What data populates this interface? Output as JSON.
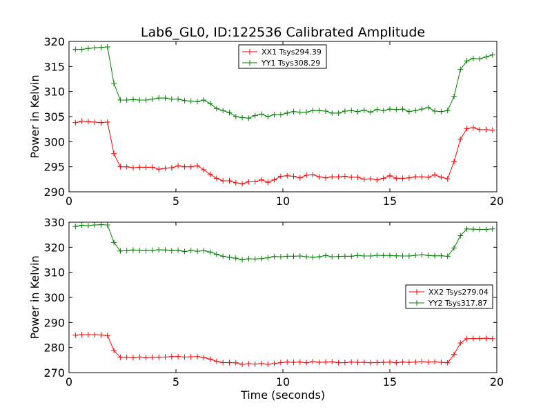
{
  "title": "Lab6_GL0, ID:122536 Calibrated Amplitude",
  "xlabel": "Time (seconds)",
  "colors": {
    "xx": "#ff0000",
    "yy": "#008000"
  },
  "chart_data": [
    {
      "type": "line",
      "ylabel": "Power in Kelvin",
      "xlim": [
        0,
        20
      ],
      "ylim": [
        290,
        320
      ],
      "xticks": [
        0,
        5,
        10,
        15,
        20
      ],
      "yticks": [
        290,
        295,
        300,
        305,
        310,
        315,
        320
      ],
      "legend": "top-center",
      "grid": false,
      "series": [
        {
          "name": "XX1 Tsys294.39",
          "color": "#ff0000",
          "x": [
            0.3,
            0.6,
            0.9,
            1.2,
            1.5,
            1.8,
            2.1,
            2.4,
            2.7,
            3.0,
            3.3,
            3.6,
            3.9,
            4.2,
            4.5,
            4.8,
            5.1,
            5.4,
            5.7,
            6.0,
            6.3,
            6.6,
            6.9,
            7.2,
            7.5,
            7.8,
            8.1,
            8.4,
            8.7,
            9.0,
            9.3,
            9.6,
            9.9,
            10.2,
            10.5,
            10.8,
            11.1,
            11.4,
            11.7,
            12.0,
            12.3,
            12.6,
            12.9,
            13.2,
            13.5,
            13.8,
            14.1,
            14.4,
            14.7,
            15.0,
            15.3,
            15.6,
            15.9,
            16.2,
            16.5,
            16.8,
            17.1,
            17.4,
            17.7,
            18.0,
            18.3,
            18.6,
            18.9,
            19.2,
            19.5,
            19.8
          ],
          "y": [
            303.8,
            304.1,
            304.0,
            303.9,
            303.8,
            303.9,
            297.6,
            295.0,
            295.0,
            294.8,
            294.9,
            294.9,
            294.9,
            294.5,
            294.7,
            294.8,
            295.2,
            295.0,
            295.0,
            295.2,
            294.4,
            293.5,
            292.7,
            292.2,
            292.2,
            291.8,
            291.6,
            292.0,
            292.0,
            292.4,
            291.9,
            292.4,
            293.1,
            293.2,
            293.1,
            292.8,
            293.3,
            293.4,
            293.0,
            292.8,
            293.0,
            293.0,
            293.1,
            292.9,
            292.9,
            292.5,
            292.6,
            292.4,
            292.7,
            293.2,
            292.7,
            292.7,
            292.8,
            293.0,
            293.0,
            292.9,
            293.4,
            292.9,
            292.6,
            296.0,
            300.5,
            302.6,
            302.8,
            302.4,
            302.4,
            302.3
          ]
        },
        {
          "name": "YY1 Tsys308.29",
          "color": "#008000",
          "x": [
            0.3,
            0.6,
            0.9,
            1.2,
            1.5,
            1.8,
            2.1,
            2.4,
            2.7,
            3.0,
            3.3,
            3.6,
            3.9,
            4.2,
            4.5,
            4.8,
            5.1,
            5.4,
            5.7,
            6.0,
            6.3,
            6.6,
            6.9,
            7.2,
            7.5,
            7.8,
            8.1,
            8.4,
            8.7,
            9.0,
            9.3,
            9.6,
            9.9,
            10.2,
            10.5,
            10.8,
            11.1,
            11.4,
            11.7,
            12.0,
            12.3,
            12.6,
            12.9,
            13.2,
            13.5,
            13.8,
            14.1,
            14.4,
            14.7,
            15.0,
            15.3,
            15.6,
            15.9,
            16.2,
            16.5,
            16.8,
            17.1,
            17.4,
            17.7,
            18.0,
            18.3,
            18.6,
            18.9,
            19.2,
            19.5,
            19.8
          ],
          "y": [
            318.4,
            318.4,
            318.6,
            318.7,
            318.8,
            318.9,
            311.6,
            308.3,
            308.3,
            308.4,
            308.3,
            308.3,
            308.5,
            308.7,
            308.7,
            308.5,
            308.5,
            308.2,
            308.1,
            308.0,
            308.3,
            307.6,
            306.6,
            306.2,
            305.8,
            305.0,
            304.8,
            304.7,
            305.2,
            305.5,
            305.0,
            305.4,
            305.4,
            305.7,
            306.0,
            305.9,
            305.9,
            306.2,
            306.2,
            306.1,
            305.7,
            305.7,
            306.1,
            306.2,
            306.0,
            306.3,
            305.9,
            306.4,
            306.2,
            306.5,
            306.4,
            306.5,
            306.0,
            306.2,
            306.5,
            306.8,
            306.1,
            306.0,
            306.2,
            309.0,
            314.4,
            316.1,
            316.6,
            316.5,
            316.9,
            317.3
          ]
        }
      ]
    },
    {
      "type": "line",
      "ylabel": "Power in Kelvin",
      "xlabel": "Time (seconds)",
      "xlim": [
        0,
        20
      ],
      "ylim": [
        270,
        330
      ],
      "xticks": [
        0,
        5,
        10,
        15,
        20
      ],
      "yticks": [
        270,
        280,
        290,
        300,
        310,
        320,
        330
      ],
      "legend": "center-right",
      "grid": false,
      "series": [
        {
          "name": "XX2 Tsys279.04",
          "color": "#ff0000",
          "x": [
            0.3,
            0.6,
            0.9,
            1.2,
            1.5,
            1.8,
            2.1,
            2.4,
            2.7,
            3.0,
            3.3,
            3.6,
            3.9,
            4.2,
            4.5,
            4.8,
            5.1,
            5.4,
            5.7,
            6.0,
            6.3,
            6.6,
            6.9,
            7.2,
            7.5,
            7.8,
            8.1,
            8.4,
            8.7,
            9.0,
            9.3,
            9.6,
            9.9,
            10.2,
            10.5,
            10.8,
            11.1,
            11.4,
            11.7,
            12.0,
            12.3,
            12.6,
            12.9,
            13.2,
            13.5,
            13.8,
            14.1,
            14.4,
            14.7,
            15.0,
            15.3,
            15.6,
            15.9,
            16.2,
            16.5,
            16.8,
            17.1,
            17.4,
            17.7,
            18.0,
            18.3,
            18.6,
            18.9,
            19.2,
            19.5,
            19.8
          ],
          "y": [
            284.9,
            285.1,
            285.1,
            285.1,
            285.0,
            284.8,
            278.8,
            276.1,
            276.1,
            276.0,
            276.2,
            276.0,
            276.1,
            276.1,
            276.2,
            276.4,
            276.4,
            276.2,
            276.3,
            276.4,
            276.0,
            275.4,
            274.5,
            274.0,
            274.0,
            273.9,
            273.3,
            273.5,
            273.4,
            273.6,
            273.3,
            273.6,
            274.0,
            274.2,
            274.1,
            274.2,
            273.9,
            274.4,
            274.1,
            274.2,
            274.3,
            273.9,
            274.0,
            274.2,
            274.1,
            274.1,
            273.9,
            274.0,
            274.1,
            274.2,
            273.9,
            274.2,
            274.1,
            274.2,
            274.4,
            274.2,
            274.3,
            274.1,
            273.9,
            277.2,
            281.8,
            283.5,
            283.6,
            283.6,
            283.7,
            283.5
          ]
        },
        {
          "name": "YY2 Tsys317.87",
          "color": "#008000",
          "x": [
            0.3,
            0.6,
            0.9,
            1.2,
            1.5,
            1.8,
            2.1,
            2.4,
            2.7,
            3.0,
            3.3,
            3.6,
            3.9,
            4.2,
            4.5,
            4.8,
            5.1,
            5.4,
            5.7,
            6.0,
            6.3,
            6.6,
            6.9,
            7.2,
            7.5,
            7.8,
            8.1,
            8.4,
            8.7,
            9.0,
            9.3,
            9.6,
            9.9,
            10.2,
            10.5,
            10.8,
            11.1,
            11.4,
            11.7,
            12.0,
            12.3,
            12.6,
            12.9,
            13.2,
            13.5,
            13.8,
            14.1,
            14.4,
            14.7,
            15.0,
            15.3,
            15.6,
            15.9,
            16.2,
            16.5,
            16.8,
            17.1,
            17.4,
            17.7,
            18.0,
            18.3,
            18.6,
            18.9,
            19.2,
            19.5,
            19.8
          ],
          "y": [
            328.3,
            328.8,
            328.6,
            328.9,
            329.0,
            328.9,
            321.9,
            318.5,
            318.6,
            318.9,
            318.7,
            318.6,
            318.8,
            319.0,
            318.9,
            318.6,
            318.8,
            318.3,
            318.7,
            318.4,
            318.6,
            318.1,
            317.2,
            316.4,
            316.0,
            315.6,
            315.0,
            315.4,
            315.3,
            315.5,
            315.8,
            316.3,
            316.2,
            316.4,
            316.4,
            316.5,
            316.2,
            316.0,
            316.2,
            316.7,
            316.2,
            316.3,
            316.4,
            316.4,
            316.8,
            316.5,
            316.5,
            316.8,
            316.7,
            316.7,
            316.6,
            316.5,
            316.5,
            316.8,
            317.0,
            316.7,
            316.6,
            316.6,
            316.4,
            319.7,
            324.6,
            327.3,
            327.2,
            327.1,
            327.1,
            327.3
          ]
        }
      ]
    }
  ]
}
